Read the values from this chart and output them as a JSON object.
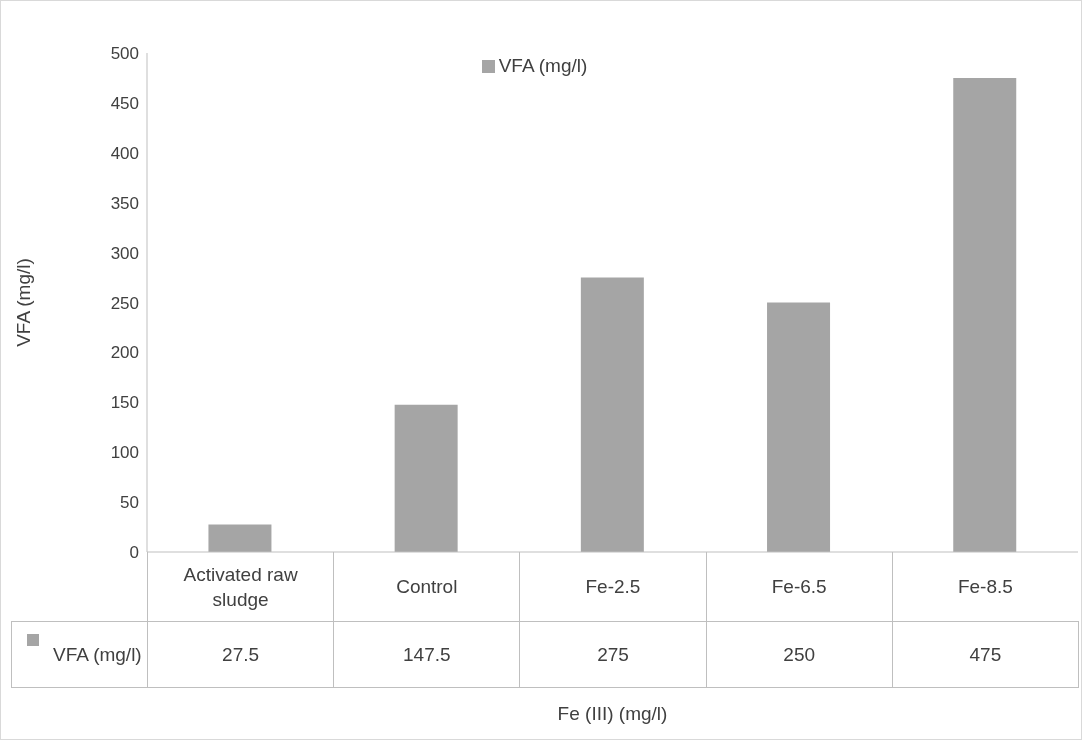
{
  "chart_data": {
    "type": "bar",
    "xlabel": "Fe (III) (mg/l)",
    "ylabel": "VFA (mg/l)",
    "categories": [
      "Activated raw sludge",
      "Control",
      "Fe-2.5",
      "Fe-6.5",
      "Fe-8.5"
    ],
    "series": [
      {
        "name": "VFA (mg/l)",
        "color": "#a5a5a5",
        "values": [
          27.5,
          147.5,
          275,
          250,
          475
        ]
      }
    ],
    "ylim": [
      0,
      500
    ],
    "yticks": [
      0,
      50,
      100,
      150,
      200,
      250,
      300,
      350,
      400,
      450,
      500
    ],
    "grid": false,
    "legend": "top",
    "data_labels": true
  }
}
